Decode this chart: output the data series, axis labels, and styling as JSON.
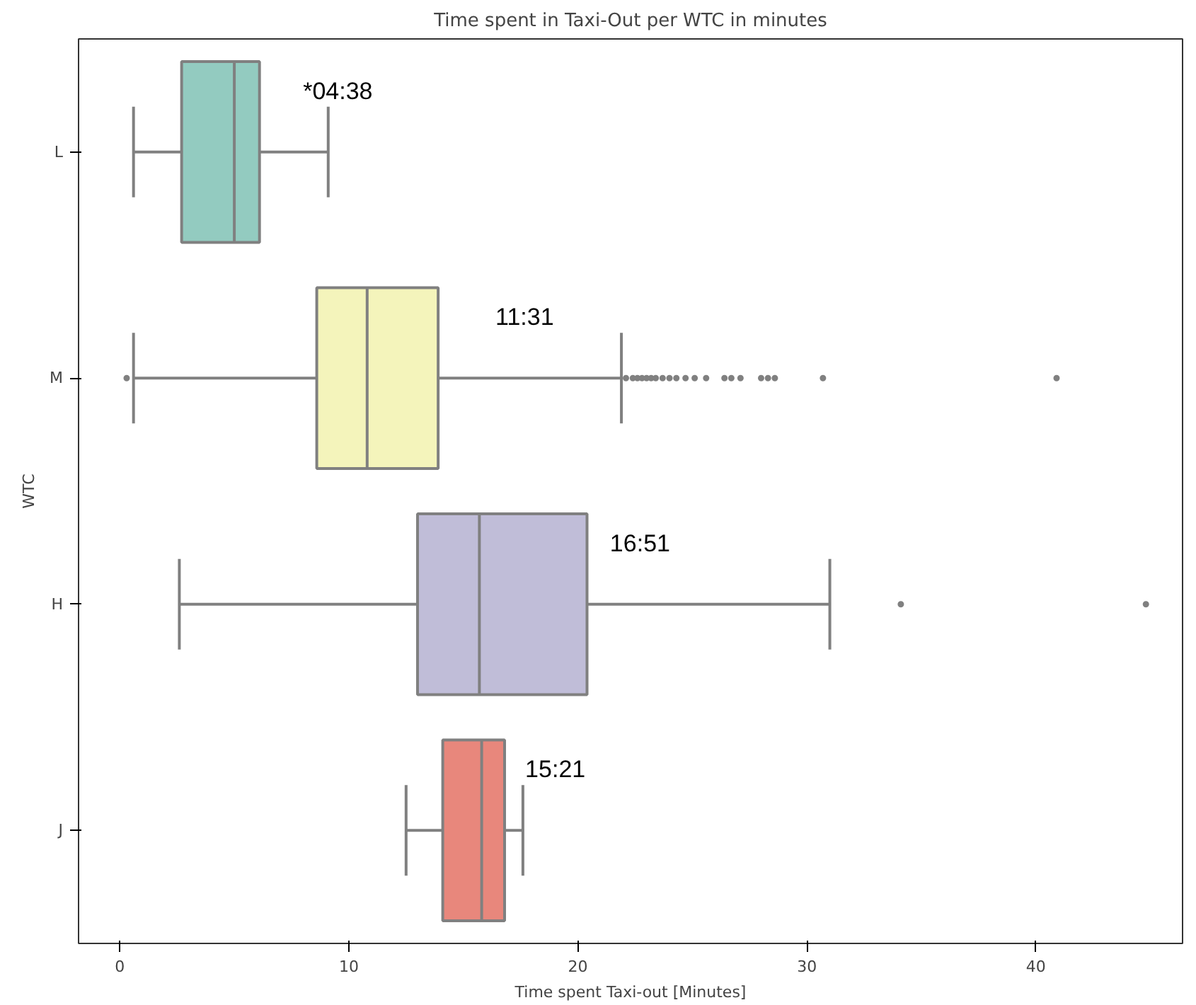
{
  "chart_data": {
    "type": "box",
    "title": "Time spent in Taxi-Out per WTC in minutes",
    "xlabel": "Time spent Taxi-out [Minutes]",
    "ylabel": "WTC",
    "orientation": "horizontal",
    "categories": [
      "L",
      "M",
      "H",
      "J"
    ],
    "colors": [
      "#93cbc0",
      "#f4f4bb",
      "#c0bdd8",
      "#e8877c"
    ],
    "boxes": [
      {
        "low": 0.6,
        "q1": 2.7,
        "median": 5.0,
        "q3": 6.1,
        "high": 9.1
      },
      {
        "low": 0.6,
        "q1": 8.6,
        "median": 10.8,
        "q3": 13.9,
        "high": 21.9,
        "outliers": [
          0.3,
          22.1,
          22.4,
          22.6,
          22.8,
          23.0,
          23.2,
          23.4,
          23.7,
          24.0,
          24.3,
          24.7,
          25.1,
          25.6,
          26.4,
          26.7,
          27.1,
          28.0,
          28.3,
          28.6,
          30.7,
          40.9
        ]
      },
      {
        "low": 2.6,
        "q1": 13.0,
        "median": 15.7,
        "q3": 20.4,
        "high": 31.0,
        "outliers": [
          34.1,
          44.8
        ]
      },
      {
        "low": 12.5,
        "q1": 14.1,
        "median": 15.8,
        "q3": 16.8,
        "high": 17.6
      }
    ],
    "annotations": [
      {
        "text": "*04:38",
        "x": 8.0,
        "y": "L"
      },
      {
        "text": "11:31",
        "x": 16.4,
        "y": "M"
      },
      {
        "text": "16:51",
        "x": 21.4,
        "y": "H"
      },
      {
        "text": "15:21",
        "x": 17.7,
        "y": "J"
      }
    ],
    "xlim": [
      -1.8,
      46.4
    ],
    "xticks": [
      0,
      10,
      20,
      30,
      40
    ],
    "grid": false,
    "marker": "circle"
  }
}
